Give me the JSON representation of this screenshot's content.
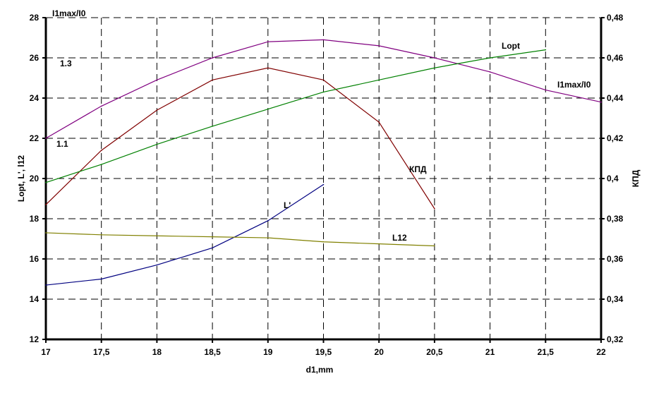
{
  "chart_data": {
    "type": "line",
    "xlabel": "d1,mm",
    "ylabel": "Lopt, L', l12",
    "y2label": "КПД",
    "xlim": [
      17,
      22
    ],
    "ylim": [
      12,
      28
    ],
    "y2lim": [
      0.32,
      0.48
    ],
    "grid": true,
    "x_ticks": [
      "17",
      "17,5",
      "18",
      "18,5",
      "19",
      "19,5",
      "20",
      "20,5",
      "21",
      "21,5",
      "22"
    ],
    "y_ticks": [
      "12",
      "14",
      "16",
      "18",
      "20",
      "22",
      "24",
      "26",
      "28"
    ],
    "y2_ticks": [
      "0,32",
      "0,34",
      "0,36",
      "0,38",
      "0,4",
      "0,42",
      "0,44",
      "0,46",
      "0,48"
    ],
    "annotations": {
      "i1_axis_title": "I1max/I0",
      "i1_tick_high": "1.3",
      "i1_tick_low": "1.1"
    },
    "series": [
      {
        "name": "I1max/I0",
        "axis": "left",
        "color": "#800080",
        "x": [
          17,
          17.5,
          18,
          18.5,
          19,
          19.5,
          20,
          20.5,
          21,
          21.5,
          22
        ],
        "y": [
          22.0,
          23.6,
          24.9,
          26.0,
          26.8,
          26.9,
          26.6,
          26.0,
          25.3,
          24.4,
          23.8
        ]
      },
      {
        "name": "КПД",
        "axis": "right",
        "color": "#800000",
        "x": [
          17,
          17.5,
          18,
          18.5,
          19,
          19.5,
          20,
          20.5
        ],
        "y": [
          0.387,
          0.414,
          0.434,
          0.449,
          0.455,
          0.449,
          0.428,
          0.385
        ]
      },
      {
        "name": "Lopt",
        "axis": "left",
        "color": "#008000",
        "x": [
          17,
          17.5,
          18,
          18.5,
          19,
          19.5,
          20,
          20.5,
          21,
          21.5
        ],
        "y": [
          19.8,
          20.7,
          21.7,
          22.6,
          23.45,
          24.3,
          24.9,
          25.5,
          26.0,
          26.4
        ]
      },
      {
        "name": "L'",
        "axis": "left",
        "color": "#000080",
        "x": [
          17,
          17.5,
          18,
          18.5,
          19,
          19.5
        ],
        "y": [
          14.7,
          15.0,
          15.7,
          16.55,
          17.9,
          19.7
        ]
      },
      {
        "name": "L12",
        "axis": "left",
        "color": "#808000",
        "x": [
          17,
          17.5,
          18,
          18.5,
          19,
          19.5,
          20,
          20.5
        ],
        "y": [
          17.3,
          17.2,
          17.15,
          17.1,
          17.05,
          16.85,
          16.75,
          16.65
        ]
      }
    ]
  }
}
